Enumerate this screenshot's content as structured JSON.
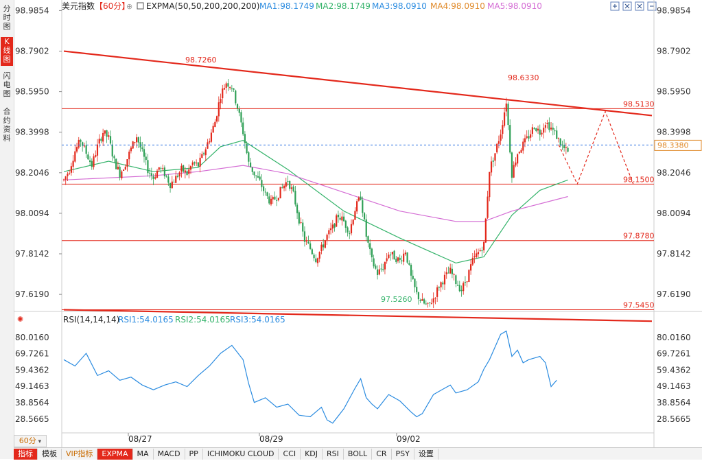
{
  "left_tabs": [
    {
      "label": "分时图"
    },
    {
      "label": "K线图",
      "active": true
    },
    {
      "label": "闪电图"
    },
    {
      "label": "合约资料"
    }
  ],
  "header": {
    "title": "美元指数",
    "period": "【60分】",
    "expma_label": "EXPMA(50,50,200,200,200)",
    "ma": [
      {
        "label": "MA1:98.1749",
        "color": "#2a8be0"
      },
      {
        "label": "MA2:98.1749",
        "color": "#34b36a"
      },
      {
        "label": "MA3:98.0910",
        "color": "#2a8be0"
      },
      {
        "label": "MA4:98.0910",
        "color": "#e08a2a"
      },
      {
        "label": "MA5:98.0910",
        "color": "#d46cd4"
      }
    ]
  },
  "toolbar_icons": [
    "expand-icon",
    "zoom-fit-icon",
    "close-box-icon",
    "fullscreen-icon"
  ],
  "price_axis": {
    "ticks": [
      "98.9854",
      "98.7902",
      "98.5950",
      "98.3998",
      "98.2046",
      "98.0094",
      "97.8142",
      "97.6190"
    ],
    "current": "98.3380"
  },
  "levels": [
    {
      "value": 98.513,
      "label": "98.5130"
    },
    {
      "value": 98.15,
      "label": "98.1500"
    },
    {
      "value": 97.878,
      "label": "97.8780"
    },
    {
      "value": 97.545,
      "label": "97.5450"
    }
  ],
  "annotations": [
    {
      "label": "98.7260"
    },
    {
      "label": "98.6330"
    },
    {
      "label": "97.5260"
    }
  ],
  "rsi": {
    "header": "RSI(14,14,14)",
    "lines": [
      {
        "label": "RSI1:54.0165",
        "color": "#2a8be0"
      },
      {
        "label": "RSI2:54.0165",
        "color": "#34b36a"
      },
      {
        "label": "RSI3:54.0165",
        "color": "#2a8be0"
      }
    ],
    "ticks": [
      "80.0160",
      "69.7261",
      "59.4362",
      "49.1463",
      "38.8564",
      "28.5665"
    ]
  },
  "x_dates": [
    "08/27",
    "08/29",
    "09/02"
  ],
  "bottom_tabs": [
    {
      "label": "指标",
      "active": true
    },
    {
      "label": "模板"
    },
    {
      "label": "VIP指标",
      "vip": true
    },
    {
      "label": "EXPMA",
      "active": true
    },
    {
      "label": "MA"
    },
    {
      "label": "MACD"
    },
    {
      "label": "PP"
    },
    {
      "label": "ICHIMOKU CLOUD"
    },
    {
      "label": "CCI"
    },
    {
      "label": "KDJ"
    },
    {
      "label": "RSI"
    },
    {
      "label": "BOLL"
    },
    {
      "label": "CR"
    },
    {
      "label": "PSY"
    },
    {
      "label": "设置"
    }
  ],
  "period_selector": "60分",
  "chart_data": {
    "type": "candlestick",
    "title": "美元指数",
    "period": "60分",
    "ylim": [
      97.55,
      98.99
    ],
    "price_series": [
      [
        0,
        98.17
      ],
      [
        3,
        98.22
      ],
      [
        6,
        98.31
      ],
      [
        9,
        98.36
      ],
      [
        12,
        98.3
      ],
      [
        15,
        98.24
      ],
      [
        18,
        98.33
      ],
      [
        21,
        98.4
      ],
      [
        24,
        98.37
      ],
      [
        27,
        98.26
      ],
      [
        30,
        98.2
      ],
      [
        33,
        98.25
      ],
      [
        36,
        98.32
      ],
      [
        39,
        98.38
      ],
      [
        42,
        98.3
      ],
      [
        45,
        98.22
      ],
      [
        48,
        98.18
      ],
      [
        51,
        98.23
      ],
      [
        54,
        98.2
      ],
      [
        57,
        98.15
      ],
      [
        60,
        98.18
      ],
      [
        63,
        98.22
      ],
      [
        66,
        98.2
      ],
      [
        69,
        98.25
      ],
      [
        72,
        98.24
      ],
      [
        75,
        98.3
      ],
      [
        78,
        98.37
      ],
      [
        81,
        98.45
      ],
      [
        84,
        98.58
      ],
      [
        87,
        98.64
      ],
      [
        90,
        98.62
      ],
      [
        93,
        98.52
      ],
      [
        96,
        98.4
      ],
      [
        99,
        98.25
      ],
      [
        102,
        98.2
      ],
      [
        105,
        98.16
      ],
      [
        108,
        98.1
      ],
      [
        111,
        98.06
      ],
      [
        114,
        98.09
      ],
      [
        117,
        98.13
      ],
      [
        120,
        98.17
      ],
      [
        123,
        98.1
      ],
      [
        126,
        97.98
      ],
      [
        129,
        97.88
      ],
      [
        132,
        97.84
      ],
      [
        135,
        97.79
      ],
      [
        138,
        97.84
      ],
      [
        141,
        97.9
      ],
      [
        144,
        97.94
      ],
      [
        147,
        98.0
      ],
      [
        150,
        97.97
      ],
      [
        153,
        97.92
      ],
      [
        156,
        98.03
      ],
      [
        159,
        98.09
      ],
      [
        162,
        97.9
      ],
      [
        165,
        97.78
      ],
      [
        168,
        97.72
      ],
      [
        171,
        97.75
      ],
      [
        174,
        97.82
      ],
      [
        177,
        97.8
      ],
      [
        180,
        97.78
      ],
      [
        183,
        97.83
      ],
      [
        186,
        97.7
      ],
      [
        189,
        97.62
      ],
      [
        192,
        97.58
      ],
      [
        195,
        97.56
      ],
      [
        198,
        97.6
      ],
      [
        201,
        97.66
      ],
      [
        204,
        97.7
      ],
      [
        207,
        97.73
      ],
      [
        210,
        97.68
      ],
      [
        213,
        97.64
      ],
      [
        216,
        97.7
      ],
      [
        219,
        97.78
      ],
      [
        222,
        97.82
      ],
      [
        225,
        97.86
      ],
      [
        228,
        98.22
      ],
      [
        231,
        98.3
      ],
      [
        234,
        98.4
      ],
      [
        237,
        98.55
      ],
      [
        240,
        98.2
      ],
      [
        243,
        98.3
      ],
      [
        246,
        98.34
      ],
      [
        249,
        98.38
      ],
      [
        252,
        98.43
      ],
      [
        255,
        98.4
      ],
      [
        258,
        98.45
      ],
      [
        261,
        98.42
      ],
      [
        264,
        98.38
      ],
      [
        267,
        98.33
      ],
      [
        270,
        98.3
      ]
    ],
    "expma_short": [
      [
        0,
        98.21
      ],
      [
        24,
        98.26
      ],
      [
        48,
        98.21
      ],
      [
        72,
        98.23
      ],
      [
        84,
        98.33
      ],
      [
        96,
        98.36
      ],
      [
        120,
        98.22
      ],
      [
        150,
        98.02
      ],
      [
        180,
        97.89
      ],
      [
        210,
        97.77
      ],
      [
        225,
        97.8
      ],
      [
        240,
        98.0
      ],
      [
        255,
        98.12
      ],
      [
        270,
        98.17
      ]
    ],
    "expma_long": [
      [
        0,
        98.17
      ],
      [
        48,
        98.19
      ],
      [
        72,
        98.21
      ],
      [
        96,
        98.24
      ],
      [
        120,
        98.2
      ],
      [
        150,
        98.11
      ],
      [
        180,
        98.02
      ],
      [
        210,
        97.97
      ],
      [
        225,
        97.97
      ],
      [
        240,
        98.02
      ],
      [
        270,
        98.09
      ]
    ],
    "trendlines": [
      {
        "from": [
          0,
          98.79
        ],
        "to": [
          315,
          98.48
        ]
      },
      {
        "from": [
          0,
          97.545
        ],
        "to": [
          315,
          97.49
        ]
      }
    ],
    "projection": [
      [
        265,
        98.34
      ],
      [
        275,
        98.15
      ],
      [
        290,
        98.5
      ],
      [
        305,
        98.15
      ]
    ],
    "rsi_series": [
      [
        0,
        66
      ],
      [
        6,
        62
      ],
      [
        12,
        70
      ],
      [
        18,
        56
      ],
      [
        24,
        59
      ],
      [
        30,
        53
      ],
      [
        36,
        55
      ],
      [
        42,
        50
      ],
      [
        48,
        47
      ],
      [
        54,
        50
      ],
      [
        60,
        52
      ],
      [
        66,
        49
      ],
      [
        72,
        56
      ],
      [
        78,
        62
      ],
      [
        84,
        70
      ],
      [
        90,
        75
      ],
      [
        96,
        66
      ],
      [
        99,
        51
      ],
      [
        102,
        39
      ],
      [
        108,
        42
      ],
      [
        114,
        36
      ],
      [
        120,
        38
      ],
      [
        126,
        31
      ],
      [
        132,
        30
      ],
      [
        138,
        36
      ],
      [
        141,
        28
      ],
      [
        144,
        26
      ],
      [
        150,
        35
      ],
      [
        156,
        48
      ],
      [
        159,
        54
      ],
      [
        162,
        42
      ],
      [
        165,
        38
      ],
      [
        168,
        35
      ],
      [
        174,
        44
      ],
      [
        180,
        40
      ],
      [
        186,
        33
      ],
      [
        189,
        30
      ],
      [
        192,
        32
      ],
      [
        198,
        44
      ],
      [
        204,
        48
      ],
      [
        207,
        50
      ],
      [
        210,
        45
      ],
      [
        216,
        47
      ],
      [
        222,
        52
      ],
      [
        225,
        60
      ],
      [
        228,
        66
      ],
      [
        234,
        82
      ],
      [
        237,
        84
      ],
      [
        240,
        68
      ],
      [
        243,
        72
      ],
      [
        246,
        64
      ],
      [
        249,
        66
      ],
      [
        252,
        67
      ],
      [
        255,
        68
      ],
      [
        258,
        64
      ],
      [
        261,
        49
      ],
      [
        264,
        53
      ]
    ],
    "rsi_ylim": [
      22,
      86
    ]
  }
}
